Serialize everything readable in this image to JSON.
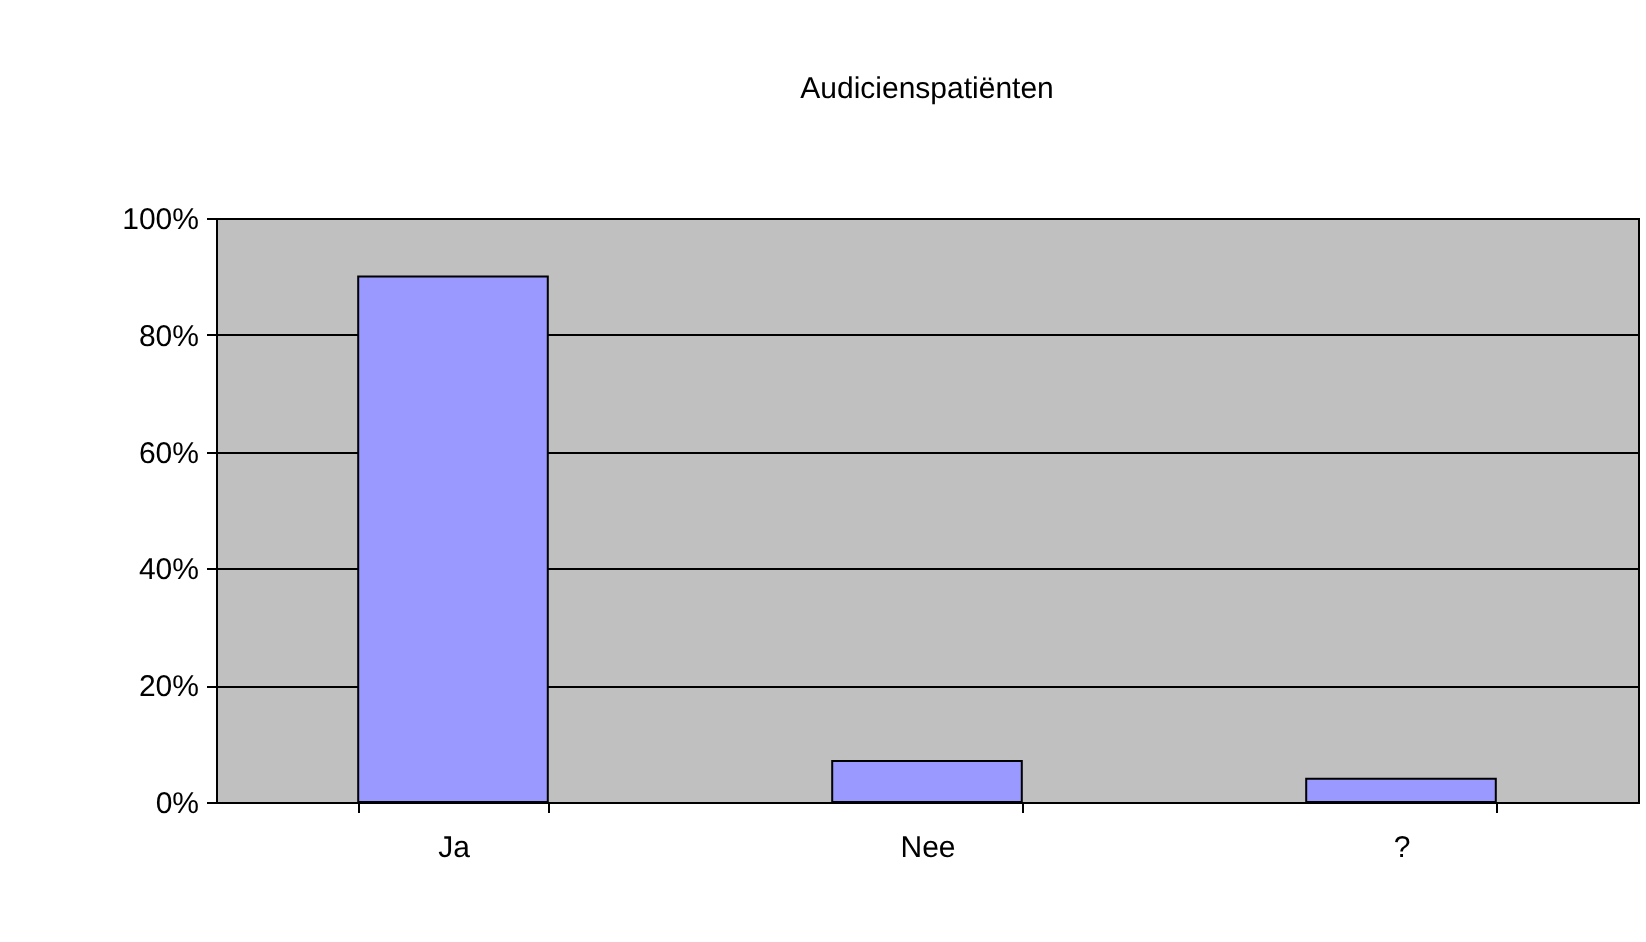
{
  "chart_data": {
    "type": "bar",
    "title": "Audicienspatiënten",
    "categories": [
      "Ja",
      "Nee",
      "?"
    ],
    "values": [
      90,
      7,
      4
    ],
    "color": "#9999ff",
    "ylim": [
      0,
      100
    ],
    "yticks": [
      {
        "value": 0,
        "label": "0%"
      },
      {
        "value": 20,
        "label": "20%"
      },
      {
        "value": 40,
        "label": "40%"
      },
      {
        "value": 60,
        "label": "60%"
      },
      {
        "value": 80,
        "label": "80%"
      },
      {
        "value": 100,
        "label": "100%"
      }
    ],
    "grid": "y"
  }
}
